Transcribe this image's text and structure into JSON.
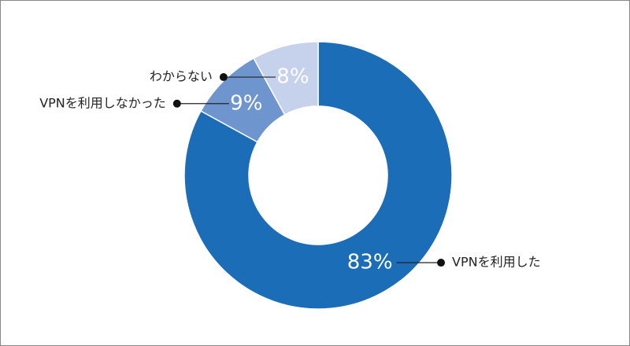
{
  "chart_data": {
    "type": "pie",
    "categories": [
      "VPNを利用した",
      "VPNを利用しなかった",
      "わからない"
    ],
    "values": [
      83,
      9,
      8
    ],
    "value_labels": [
      "83%",
      "9%",
      "8%"
    ],
    "colors": [
      "#1a6db6",
      "#6f95cf",
      "#c6d2ec"
    ]
  }
}
